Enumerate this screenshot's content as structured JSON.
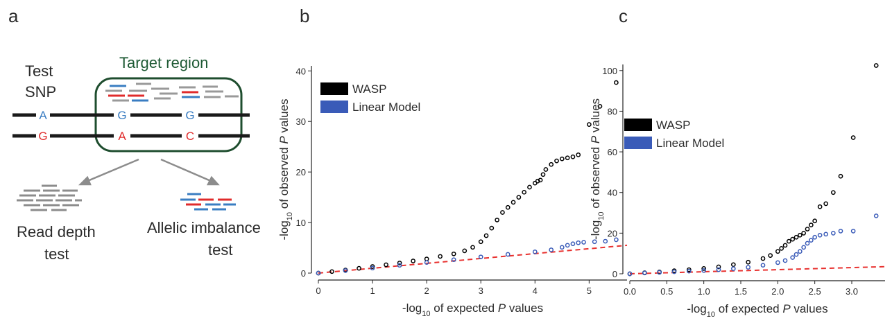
{
  "panel_labels": [
    "a",
    "b",
    "c"
  ],
  "diagram": {
    "test_snp": [
      "Test",
      "SNP"
    ],
    "target_region": "Target region",
    "alleles_top": [
      "A",
      "G",
      "G"
    ],
    "alleles_bottom": [
      "G",
      "A",
      "C"
    ],
    "read_depth_test": [
      "Read depth",
      "test"
    ],
    "allelic_imbalance_test": [
      "Allelic imbalance",
      "test"
    ]
  },
  "chart_data": [
    {
      "type": "scatter",
      "legend": "upper left",
      "xlabel": [
        "-log",
        "10",
        " of expected ",
        "P",
        " values"
      ],
      "ylabel": [
        "-log",
        "10",
        " of observed ",
        "P",
        " values"
      ],
      "xlim": [
        0,
        5.7
      ],
      "ylim": [
        0,
        41
      ],
      "xticks": [
        0,
        1,
        2,
        3,
        4,
        5
      ],
      "yticks": [
        0,
        10,
        20,
        30,
        40
      ],
      "series": [
        {
          "name": "WASP",
          "color": "#000000",
          "x": [
            0,
            0.25,
            0.5,
            0.75,
            1,
            1.25,
            1.5,
            1.75,
            2,
            2.25,
            2.5,
            2.7,
            2.85,
            3,
            3.1,
            3.2,
            3.3,
            3.4,
            3.5,
            3.6,
            3.7,
            3.8,
            3.9,
            4,
            4.05,
            4.1,
            4.15,
            4.2,
            4.3,
            4.4,
            4.5,
            4.6,
            4.7,
            4.8,
            5.0,
            5.2,
            5.5
          ],
          "values": [
            0,
            0.3,
            0.6,
            0.95,
            1.3,
            1.65,
            2,
            2.4,
            2.8,
            3.3,
            3.8,
            4.4,
            5.1,
            6.2,
            7.4,
            8.9,
            10.5,
            12,
            13,
            14,
            15,
            16,
            17,
            17.8,
            18.2,
            18.4,
            19.5,
            20.5,
            21.5,
            22.2,
            22.6,
            22.8,
            23,
            23.4,
            29.4,
            33,
            37.7
          ]
        },
        {
          "name": "Linear Model",
          "color": "#3a5bb8",
          "x": [
            0,
            0.5,
            1,
            1.5,
            2,
            2.5,
            3,
            3.5,
            4,
            4.3,
            4.5,
            4.6,
            4.7,
            4.8,
            4.9,
            5.1,
            5.3,
            5.5
          ],
          "values": [
            0,
            0.5,
            1,
            1.55,
            2.1,
            2.65,
            3.2,
            3.7,
            4.2,
            4.6,
            5.1,
            5.5,
            5.8,
            6,
            6.1,
            6.2,
            6.3,
            6.6
          ]
        }
      ],
      "reference": {
        "color": "#e8312f",
        "x": [
          0,
          5.7
        ],
        "values": [
          0,
          5.5
        ]
      }
    },
    {
      "type": "scatter",
      "legend": "upper left",
      "xlabel": [
        "-log",
        "10",
        " of expected ",
        "P",
        " values"
      ],
      "ylabel": [
        "-log",
        "10",
        " of observed ",
        "P",
        " values"
      ],
      "xlim": [
        0,
        3.45
      ],
      "ylim": [
        0,
        103
      ],
      "xticks": [
        {
          "value": 0,
          "label": "0.0"
        },
        0.5,
        {
          "value": 1,
          "label": "1.0"
        },
        1.5,
        {
          "value": 2,
          "label": "2.0"
        },
        2.5,
        {
          "value": 3,
          "label": "3.0"
        }
      ],
      "yticks": [
        0,
        20,
        40,
        60,
        80,
        100
      ],
      "series": [
        {
          "name": "WASP",
          "color": "#000000",
          "x": [
            0,
            0.2,
            0.4,
            0.6,
            0.8,
            1,
            1.2,
            1.4,
            1.6,
            1.8,
            1.9,
            2,
            2.05,
            2.1,
            2.15,
            2.2,
            2.25,
            2.3,
            2.35,
            2.4,
            2.45,
            2.5,
            2.57,
            2.65,
            2.75,
            2.85,
            3.02,
            3.33
          ],
          "values": [
            0,
            0.5,
            0.9,
            1.5,
            2,
            2.6,
            3.4,
            4.5,
            5.7,
            7.5,
            9,
            11,
            12.5,
            14,
            16,
            17,
            18,
            19,
            20,
            22,
            24,
            26,
            33,
            34.5,
            40,
            48,
            67,
            102.5
          ]
        },
        {
          "name": "Linear Model",
          "color": "#3a5bb8",
          "x": [
            0,
            0.2,
            0.4,
            0.6,
            0.8,
            1,
            1.2,
            1.4,
            1.6,
            1.8,
            2,
            2.1,
            2.2,
            2.25,
            2.3,
            2.35,
            2.4,
            2.45,
            2.5,
            2.57,
            2.65,
            2.75,
            2.85,
            3.02,
            3.33
          ],
          "values": [
            0,
            0.4,
            0.7,
            1,
            1.3,
            1.6,
            2,
            2.5,
            3.2,
            4.2,
            5.5,
            6.5,
            8,
            9.5,
            11,
            13,
            15,
            16.5,
            18,
            19,
            19.5,
            20,
            21,
            21,
            28.5
          ]
        }
      ],
      "reference": {
        "color": "#e8312f",
        "x": [
          0,
          3.45
        ],
        "values": [
          0,
          3.5
        ]
      }
    }
  ]
}
